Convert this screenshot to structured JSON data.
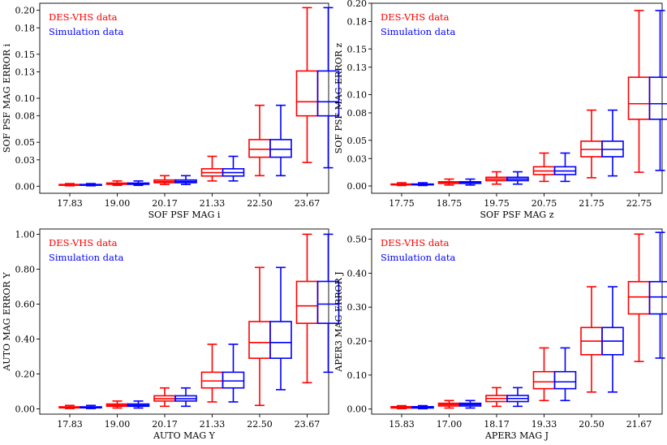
{
  "colors": {
    "des": "#ff0000",
    "sim": "#0000ff",
    "axis": "#000000"
  },
  "chart_data": [
    {
      "type": "boxplot",
      "xlabel": "SOF PSF MAG i",
      "ylabel": "SOF PSF MAG ERROR i",
      "ylim": [
        -0.008,
        0.208
      ],
      "yticks": [
        0.0,
        0.03,
        0.05,
        0.08,
        0.1,
        0.13,
        0.15,
        0.18,
        0.2
      ],
      "yticklabels": [
        "0.00",
        "0.03",
        "0.05",
        "0.08",
        "0.10",
        "0.13",
        "0.15",
        "0.18",
        "0.20"
      ],
      "categories": [
        "17.83",
        "19.00",
        "20.17",
        "21.33",
        "22.50",
        "23.67"
      ],
      "legend": [
        "DES-VHS data",
        "Simulation data"
      ],
      "series": [
        {
          "name": "DES-VHS data",
          "boxes": [
            {
              "wlo": 0.0005,
              "q1": 0.0012,
              "median": 0.0016,
              "q3": 0.002,
              "whi": 0.003
            },
            {
              "wlo": 0.001,
              "q1": 0.0022,
              "median": 0.0029,
              "q3": 0.0036,
              "whi": 0.006
            },
            {
              "wlo": 0.002,
              "q1": 0.004,
              "median": 0.0053,
              "q3": 0.0071,
              "whi": 0.012
            },
            {
              "wlo": 0.006,
              "q1": 0.0116,
              "median": 0.0155,
              "q3": 0.0198,
              "whi": 0.034
            },
            {
              "wlo": 0.012,
              "q1": 0.033,
              "median": 0.042,
              "q3": 0.053,
              "whi": 0.092
            },
            {
              "wlo": 0.027,
              "q1": 0.08,
              "median": 0.096,
              "q3": 0.131,
              "whi": 0.203
            }
          ]
        },
        {
          "name": "Simulation data",
          "boxes": [
            {
              "wlo": 0.0005,
              "q1": 0.0012,
              "median": 0.0016,
              "q3": 0.002,
              "whi": 0.003
            },
            {
              "wlo": 0.001,
              "q1": 0.0022,
              "median": 0.0029,
              "q3": 0.0036,
              "whi": 0.006
            },
            {
              "wlo": 0.002,
              "q1": 0.004,
              "median": 0.0053,
              "q3": 0.0071,
              "whi": 0.012
            },
            {
              "wlo": 0.006,
              "q1": 0.0116,
              "median": 0.0155,
              "q3": 0.0198,
              "whi": 0.034
            },
            {
              "wlo": 0.012,
              "q1": 0.033,
              "median": 0.042,
              "q3": 0.053,
              "whi": 0.092
            },
            {
              "wlo": 0.021,
              "q1": 0.08,
              "median": 0.096,
              "q3": 0.131,
              "whi": 0.203
            }
          ]
        }
      ]
    },
    {
      "type": "boxplot",
      "xlabel": "SOF PSF MAG z",
      "ylabel": "SOF PSF MAG ERROR z",
      "ylim": [
        -0.008,
        0.2
      ],
      "yticks": [
        0.0,
        0.03,
        0.05,
        0.08,
        0.1,
        0.13,
        0.15,
        0.18,
        0.2
      ],
      "yticklabels": [
        "0.00",
        "0.03",
        "0.05",
        "0.08",
        "0.10",
        "0.13",
        "0.15",
        "0.18",
        "0.20"
      ],
      "categories": [
        "17.75",
        "18.75",
        "19.75",
        "20.75",
        "21.75",
        "22.75"
      ],
      "legend": [
        "DES-VHS data",
        "Simulation data"
      ],
      "series": [
        {
          "name": "DES-VHS data",
          "boxes": [
            {
              "wlo": 0.0005,
              "q1": 0.0012,
              "median": 0.0016,
              "q3": 0.0021,
              "whi": 0.0035
            },
            {
              "wlo": 0.001,
              "q1": 0.0028,
              "median": 0.0037,
              "q3": 0.0046,
              "whi": 0.0075
            },
            {
              "wlo": 0.002,
              "q1": 0.0058,
              "median": 0.0076,
              "q3": 0.0095,
              "whi": 0.0155
            },
            {
              "wlo": 0.005,
              "q1": 0.0125,
              "median": 0.0164,
              "q3": 0.021,
              "whi": 0.036
            },
            {
              "wlo": 0.009,
              "q1": 0.032,
              "median": 0.04,
              "q3": 0.049,
              "whi": 0.083
            },
            {
              "wlo": 0.015,
              "q1": 0.073,
              "median": 0.09,
              "q3": 0.119,
              "whi": 0.192
            }
          ]
        },
        {
          "name": "Simulation data",
          "boxes": [
            {
              "wlo": 0.0005,
              "q1": 0.0012,
              "median": 0.0016,
              "q3": 0.0021,
              "whi": 0.0035
            },
            {
              "wlo": 0.001,
              "q1": 0.0028,
              "median": 0.0037,
              "q3": 0.0046,
              "whi": 0.0075
            },
            {
              "wlo": 0.002,
              "q1": 0.0058,
              "median": 0.0076,
              "q3": 0.0095,
              "whi": 0.0155
            },
            {
              "wlo": 0.005,
              "q1": 0.0125,
              "median": 0.0164,
              "q3": 0.021,
              "whi": 0.036
            },
            {
              "wlo": 0.011,
              "q1": 0.032,
              "median": 0.04,
              "q3": 0.049,
              "whi": 0.083
            },
            {
              "wlo": 0.017,
              "q1": 0.073,
              "median": 0.09,
              "q3": 0.119,
              "whi": 0.192
            }
          ]
        }
      ]
    },
    {
      "type": "boxplot",
      "xlabel": "AUTO MAG Y",
      "ylabel": "AUTO MAG ERROR Y",
      "ylim": [
        -0.03,
        1.03
      ],
      "yticks": [
        0.0,
        0.2,
        0.4,
        0.6,
        0.8,
        1.0
      ],
      "yticklabels": [
        "0.00",
        "0.20",
        "0.40",
        "0.60",
        "0.80",
        "1.00"
      ],
      "categories": [
        "17.83",
        "19.00",
        "20.17",
        "21.33",
        "22.50",
        "23.67"
      ],
      "legend": [
        "DES-VHS data",
        "Simulation data"
      ],
      "series": [
        {
          "name": "DES-VHS data",
          "boxes": [
            {
              "wlo": 0.002,
              "q1": 0.006,
              "median": 0.009,
              "q3": 0.012,
              "whi": 0.02
            },
            {
              "wlo": 0.005,
              "q1": 0.015,
              "median": 0.021,
              "q3": 0.028,
              "whi": 0.045
            },
            {
              "wlo": 0.015,
              "q1": 0.045,
              "median": 0.058,
              "q3": 0.075,
              "whi": 0.12
            },
            {
              "wlo": 0.04,
              "q1": 0.12,
              "median": 0.16,
              "q3": 0.21,
              "whi": 0.37
            },
            {
              "wlo": 0.02,
              "q1": 0.29,
              "median": 0.38,
              "q3": 0.5,
              "whi": 0.81
            },
            {
              "wlo": 0.15,
              "q1": 0.49,
              "median": 0.59,
              "q3": 0.73,
              "whi": 1.0
            }
          ]
        },
        {
          "name": "Simulation data",
          "boxes": [
            {
              "wlo": 0.002,
              "q1": 0.006,
              "median": 0.009,
              "q3": 0.012,
              "whi": 0.02
            },
            {
              "wlo": 0.005,
              "q1": 0.015,
              "median": 0.021,
              "q3": 0.028,
              "whi": 0.045
            },
            {
              "wlo": 0.015,
              "q1": 0.045,
              "median": 0.058,
              "q3": 0.075,
              "whi": 0.12
            },
            {
              "wlo": 0.04,
              "q1": 0.12,
              "median": 0.16,
              "q3": 0.21,
              "whi": 0.37
            },
            {
              "wlo": 0.11,
              "q1": 0.29,
              "median": 0.38,
              "q3": 0.5,
              "whi": 0.81
            },
            {
              "wlo": 0.21,
              "q1": 0.49,
              "median": 0.6,
              "q3": 0.73,
              "whi": 1.0
            }
          ]
        }
      ]
    },
    {
      "type": "boxplot",
      "xlabel": "APER3 MAG J",
      "ylabel": "APER3 MAG ERROR J",
      "ylim": [
        -0.015,
        0.53
      ],
      "yticks": [
        0.0,
        0.1,
        0.2,
        0.3,
        0.4,
        0.5
      ],
      "yticklabels": [
        "0.00",
        "0.10",
        "0.20",
        "0.30",
        "0.40",
        "0.50"
      ],
      "categories": [
        "15.83",
        "17.00",
        "18.17",
        "19.33",
        "20.50",
        "21.67"
      ],
      "legend": [
        "DES-VHS data",
        "Simulation data"
      ],
      "series": [
        {
          "name": "DES-VHS data",
          "boxes": [
            {
              "wlo": 0.001,
              "q1": 0.003,
              "median": 0.005,
              "q3": 0.007,
              "whi": 0.01
            },
            {
              "wlo": 0.003,
              "q1": 0.009,
              "median": 0.013,
              "q3": 0.017,
              "whi": 0.025
            },
            {
              "wlo": 0.008,
              "q1": 0.022,
              "median": 0.031,
              "q3": 0.04,
              "whi": 0.063
            },
            {
              "wlo": 0.025,
              "q1": 0.06,
              "median": 0.08,
              "q3": 0.11,
              "whi": 0.18
            },
            {
              "wlo": 0.05,
              "q1": 0.16,
              "median": 0.2,
              "q3": 0.24,
              "whi": 0.36
            },
            {
              "wlo": 0.14,
              "q1": 0.28,
              "median": 0.33,
              "q3": 0.375,
              "whi": 0.515
            }
          ]
        },
        {
          "name": "Simulation data",
          "boxes": [
            {
              "wlo": 0.001,
              "q1": 0.003,
              "median": 0.005,
              "q3": 0.007,
              "whi": 0.01
            },
            {
              "wlo": 0.003,
              "q1": 0.009,
              "median": 0.013,
              "q3": 0.017,
              "whi": 0.025
            },
            {
              "wlo": 0.008,
              "q1": 0.022,
              "median": 0.031,
              "q3": 0.04,
              "whi": 0.063
            },
            {
              "wlo": 0.025,
              "q1": 0.06,
              "median": 0.08,
              "q3": 0.11,
              "whi": 0.18
            },
            {
              "wlo": 0.05,
              "q1": 0.16,
              "median": 0.2,
              "q3": 0.24,
              "whi": 0.36
            },
            {
              "wlo": 0.15,
              "q1": 0.28,
              "median": 0.33,
              "q3": 0.375,
              "whi": 0.52
            }
          ]
        }
      ]
    }
  ]
}
